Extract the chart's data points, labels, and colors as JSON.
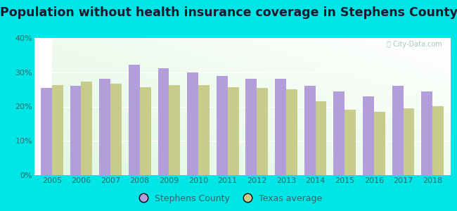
{
  "title": "Population without health insurance coverage in Stephens County",
  "years": [
    2005,
    2006,
    2007,
    2008,
    2009,
    2010,
    2011,
    2012,
    2013,
    2014,
    2015,
    2016,
    2017,
    2018
  ],
  "stephens_county": [
    25.5,
    26.0,
    28.0,
    32.2,
    31.2,
    30.0,
    29.0,
    28.0,
    28.0,
    26.0,
    24.5,
    23.0,
    26.0,
    24.5
  ],
  "texas_average": [
    26.2,
    27.2,
    26.7,
    25.6,
    26.2,
    26.2,
    25.6,
    25.4,
    25.1,
    21.5,
    19.0,
    18.5,
    19.5,
    20.2
  ],
  "county_color": "#b39ddb",
  "texas_color": "#c8cc8a",
  "outer_background": "#00e5e5",
  "ylim": [
    0,
    40
  ],
  "yticks": [
    0,
    10,
    20,
    30,
    40
  ],
  "bar_width": 0.38,
  "title_fontsize": 12.5
}
